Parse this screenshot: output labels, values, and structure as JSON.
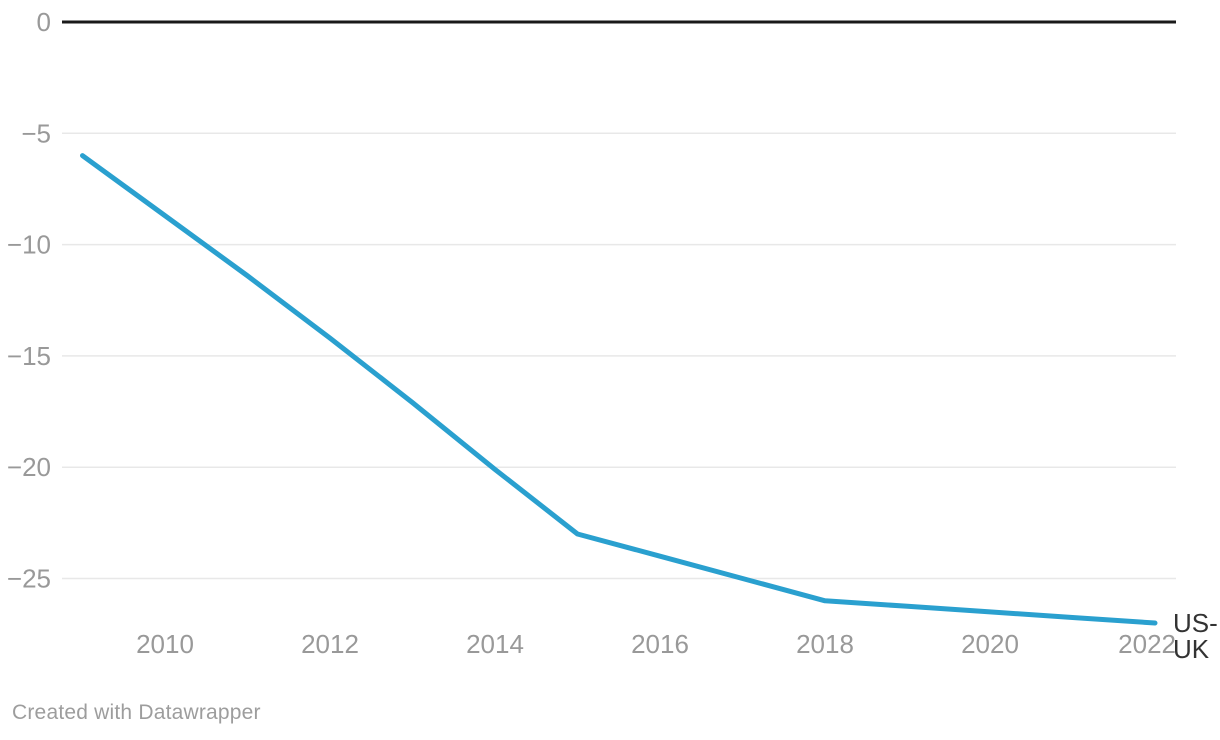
{
  "chart_data": {
    "type": "line",
    "x": [
      2009,
      2010,
      2011,
      2012,
      2013,
      2014,
      2015,
      2016,
      2017,
      2018,
      2019,
      2020,
      2021,
      2022
    ],
    "series": [
      {
        "name": "US-UK",
        "values": [
          -6,
          -8.7,
          -11.4,
          -14.2,
          -17.1,
          -20.1,
          -23,
          -24,
          -25,
          -26,
          -26.25,
          -26.5,
          -26.75,
          -27
        ]
      }
    ],
    "title": "",
    "xlabel": "",
    "ylabel": "",
    "xlim": [
      2009,
      2022
    ],
    "ylim": [
      -28.5,
      0
    ],
    "y_ticks": [
      0,
      -5,
      -10,
      -15,
      -20,
      -25
    ],
    "x_ticks": [
      2010,
      2012,
      2014,
      2016,
      2018,
      2020,
      2022
    ],
    "grid": "horizontal",
    "legend_position": "line-end-label",
    "colors": {
      "line": "#2aa0cf",
      "baseline": "#1a1a1a",
      "gridline": "#e8e8e8",
      "tick_text": "#999999",
      "series_label_text": "#333333"
    }
  },
  "footer": {
    "attribution": "Created with Datawrapper"
  }
}
